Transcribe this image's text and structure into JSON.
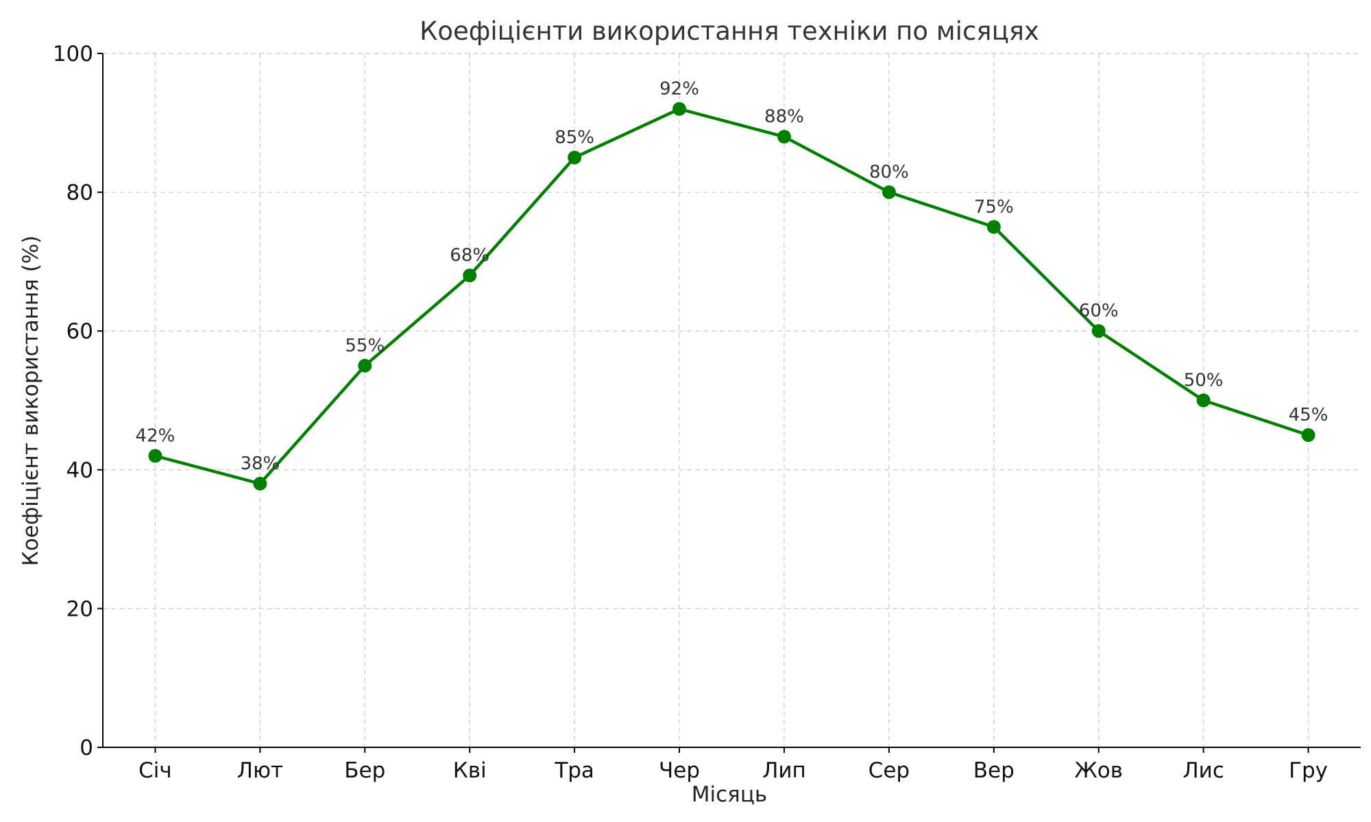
{
  "chart_data": {
    "type": "line",
    "title": "Коефіцієнти використання техніки по місяцях",
    "xlabel": "Місяць",
    "ylabel": "Коефіцієнт використання (%)",
    "categories": [
      "Січ",
      "Лют",
      "Бер",
      "Кві",
      "Тра",
      "Чер",
      "Лип",
      "Сер",
      "Вер",
      "Жов",
      "Лис",
      "Гру"
    ],
    "series": [
      {
        "values": [
          42,
          38,
          55,
          68,
          85,
          92,
          88,
          80,
          75,
          60,
          50,
          45
        ],
        "data_labels": [
          "42%",
          "38%",
          "55%",
          "68%",
          "85%",
          "92%",
          "88%",
          "80%",
          "75%",
          "60%",
          "50%",
          "45%"
        ],
        "color": "#007f00"
      }
    ],
    "ylim": [
      0,
      100
    ],
    "yticks": [
      0,
      20,
      40,
      60,
      80,
      100
    ],
    "grid": true,
    "legend": "none"
  }
}
